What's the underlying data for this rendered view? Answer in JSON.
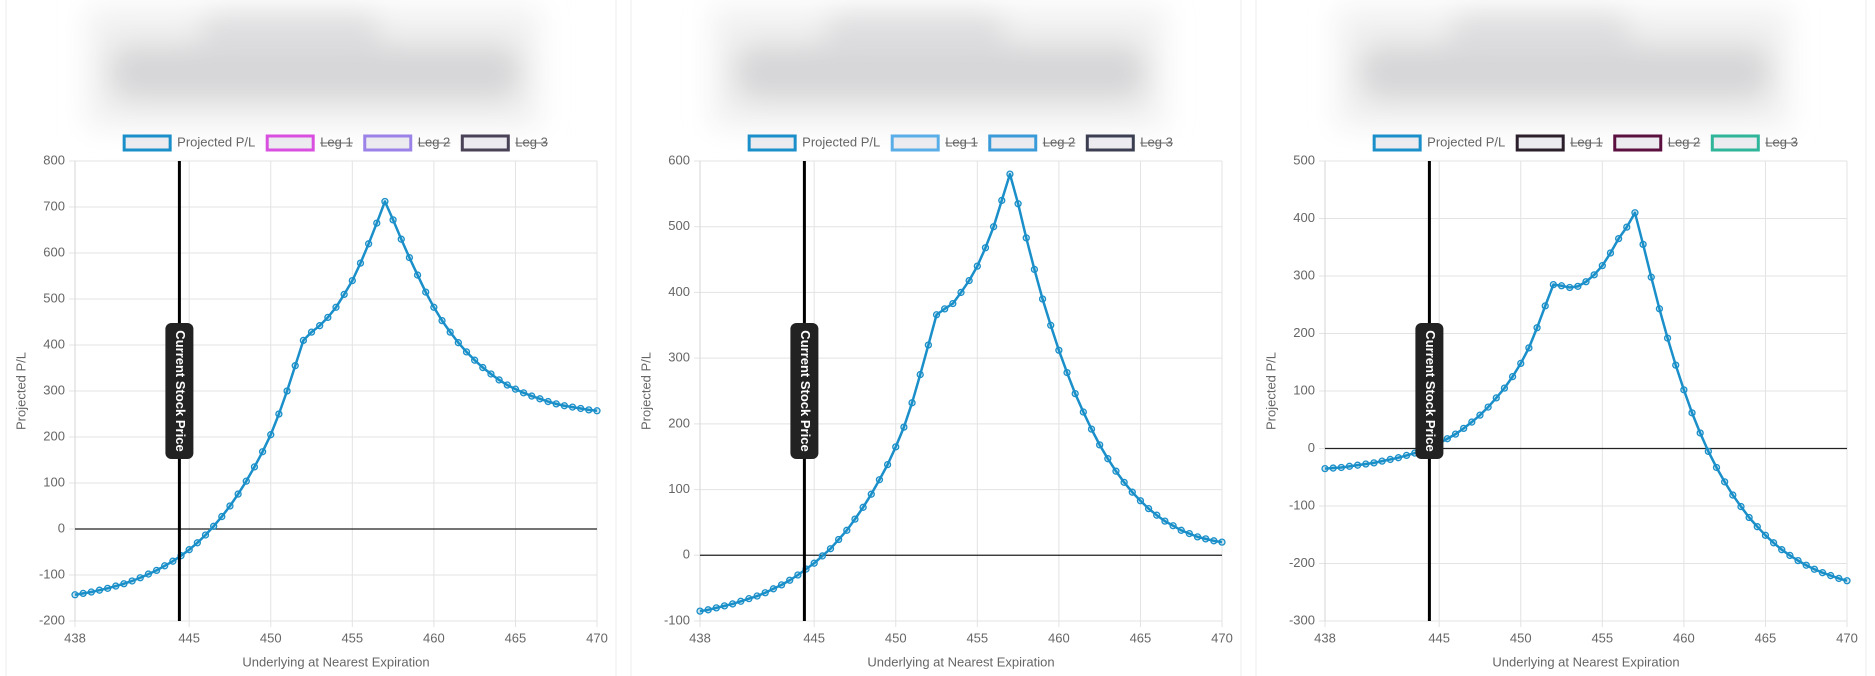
{
  "chart_data": [
    {
      "type": "line",
      "y_label": "Projected P/L",
      "x_label": "Underlying at Nearest Expiration",
      "x": [
        438,
        438.5,
        439,
        439.5,
        440,
        440.5,
        441,
        441.5,
        442,
        442.5,
        443,
        443.5,
        444,
        444.5,
        445,
        445.5,
        446,
        446.5,
        447,
        447.5,
        448,
        448.5,
        449,
        449.5,
        450,
        450.5,
        451,
        451.5,
        452,
        452.5,
        453,
        453.5,
        454,
        454.5,
        455,
        455.5,
        456,
        456.5,
        457,
        457.5,
        458,
        458.5,
        459,
        459.5,
        460,
        460.5,
        461,
        461.5,
        462,
        462.5,
        463,
        463.5,
        464,
        464.5,
        465,
        465.5,
        466,
        466.5,
        467,
        467.5,
        468,
        468.5,
        469,
        469.5,
        470
      ],
      "series": [
        {
          "name": "Projected P/L",
          "color": "#1a8fc9",
          "values": [
            -143,
            -140,
            -137,
            -133,
            -129,
            -124,
            -119,
            -113,
            -106,
            -98,
            -90,
            -80,
            -70,
            -58,
            -45,
            -30,
            -13,
            6,
            27,
            50,
            76,
            104,
            135,
            168,
            205,
            250,
            300,
            355,
            410,
            428,
            442,
            460,
            482,
            510,
            540,
            578,
            620,
            665,
            712,
            672,
            630,
            590,
            552,
            515,
            482,
            453,
            428,
            405,
            385,
            367,
            351,
            337,
            324,
            313,
            304,
            296,
            289,
            283,
            277,
            272,
            268,
            265,
            262,
            259,
            257
          ]
        },
        {
          "name": "Leg 1",
          "color": "#d94fe0",
          "hidden": true
        },
        {
          "name": "Leg 2",
          "color": "#9b82e8",
          "hidden": true
        },
        {
          "name": "Leg 3",
          "color": "#4a4358",
          "hidden": true
        }
      ],
      "xlim": [
        438,
        470
      ],
      "xticks": [
        438,
        445,
        450,
        455,
        460,
        465,
        470
      ],
      "ylim": [
        -200,
        800
      ],
      "yticks": [
        -200,
        -100,
        0,
        100,
        200,
        300,
        400,
        500,
        600,
        700,
        800
      ],
      "grid": true,
      "annotation": {
        "text": "Current Stock Price",
        "x": 444.4
      }
    },
    {
      "type": "line",
      "y_label": "Projected P/L",
      "x_label": "Underlying at Nearest Expiration",
      "x": [
        438,
        438.5,
        439,
        439.5,
        440,
        440.5,
        441,
        441.5,
        442,
        442.5,
        443,
        443.5,
        444,
        444.5,
        445,
        445.5,
        446,
        446.5,
        447,
        447.5,
        448,
        448.5,
        449,
        449.5,
        450,
        450.5,
        451,
        451.5,
        452,
        452.5,
        453,
        453.5,
        454,
        454.5,
        455,
        455.5,
        456,
        456.5,
        457,
        457.5,
        458,
        458.5,
        459,
        459.5,
        460,
        460.5,
        461,
        461.5,
        462,
        462.5,
        463,
        463.5,
        464,
        464.5,
        465,
        465.5,
        466,
        466.5,
        467,
        467.5,
        468,
        468.5,
        469,
        469.5,
        470
      ],
      "series": [
        {
          "name": "Projected P/L",
          "color": "#1a8fc9",
          "values": [
            -85,
            -83,
            -80,
            -77,
            -74,
            -70,
            -66,
            -62,
            -57,
            -51,
            -45,
            -38,
            -30,
            -21,
            -12,
            -1,
            10,
            24,
            38,
            55,
            73,
            93,
            115,
            138,
            165,
            195,
            232,
            275,
            320,
            366,
            375,
            383,
            400,
            418,
            440,
            468,
            500,
            540,
            580,
            535,
            483,
            435,
            390,
            350,
            312,
            278,
            246,
            218,
            192,
            168,
            147,
            128,
            111,
            96,
            83,
            71,
            61,
            52,
            45,
            38,
            33,
            28,
            25,
            22,
            20
          ]
        },
        {
          "name": "Leg 1",
          "color": "#5aaee8",
          "hidden": true
        },
        {
          "name": "Leg 2",
          "color": "#3a9bd8",
          "hidden": true
        },
        {
          "name": "Leg 3",
          "color": "#3c3f52",
          "hidden": true
        }
      ],
      "xlim": [
        438,
        470
      ],
      "xticks": [
        438,
        445,
        450,
        455,
        460,
        465,
        470
      ],
      "ylim": [
        -100,
        600
      ],
      "yticks": [
        -100,
        0,
        100,
        200,
        300,
        400,
        500,
        600
      ],
      "grid": true,
      "annotation": {
        "text": "Current Stock Price",
        "x": 444.4
      }
    },
    {
      "type": "line",
      "y_label": "Projected P/L",
      "x_label": "Underlying at Nearest Expiration",
      "x": [
        438,
        438.5,
        439,
        439.5,
        440,
        440.5,
        441,
        441.5,
        442,
        442.5,
        443,
        443.5,
        444,
        444.5,
        445,
        445.5,
        446,
        446.5,
        447,
        447.5,
        448,
        448.5,
        449,
        449.5,
        450,
        450.5,
        451,
        451.5,
        452,
        452.5,
        453,
        453.5,
        454,
        454.5,
        455,
        455.5,
        456,
        456.5,
        457,
        457.5,
        458,
        458.5,
        459,
        459.5,
        460,
        460.5,
        461,
        461.5,
        462,
        462.5,
        463,
        463.5,
        464,
        464.5,
        465,
        465.5,
        466,
        466.5,
        467,
        467.5,
        468,
        468.5,
        469,
        469.5,
        470
      ],
      "series": [
        {
          "name": "Projected P/L",
          "color": "#1a8fc9",
          "values": [
            -35,
            -34,
            -33,
            -31,
            -29,
            -27,
            -25,
            -22,
            -19,
            -16,
            -12,
            -8,
            -3,
            3,
            9,
            17,
            25,
            35,
            46,
            58,
            72,
            88,
            105,
            125,
            148,
            175,
            210,
            248,
            285,
            283,
            280,
            282,
            290,
            302,
            318,
            340,
            365,
            385,
            410,
            355,
            298,
            243,
            192,
            145,
            102,
            62,
            27,
            -5,
            -33,
            -58,
            -81,
            -101,
            -120,
            -136,
            -151,
            -164,
            -176,
            -186,
            -195,
            -203,
            -210,
            -216,
            -221,
            -226,
            -230
          ]
        },
        {
          "name": "Leg 1",
          "color": "#2a1f2a",
          "hidden": true
        },
        {
          "name": "Leg 2",
          "color": "#5c1040",
          "hidden": true
        },
        {
          "name": "Leg 3",
          "color": "#2fb59a",
          "hidden": true
        }
      ],
      "xlim": [
        438,
        470
      ],
      "xticks": [
        438,
        445,
        450,
        455,
        460,
        465,
        470
      ],
      "ylim": [
        -300,
        500
      ],
      "yticks": [
        -300,
        -200,
        -100,
        0,
        100,
        200,
        300,
        400,
        500
      ],
      "grid": true,
      "annotation": {
        "text": "Current Stock Price",
        "x": 444.4
      }
    }
  ]
}
